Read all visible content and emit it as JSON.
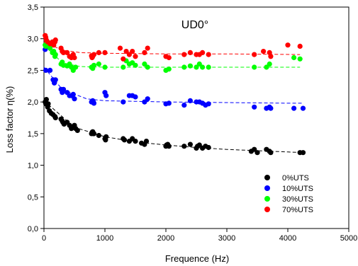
{
  "chart_data": {
    "type": "scatter",
    "title": "UD0°",
    "xlabel": "Frequence (Hz)",
    "ylabel": "Loss factor η(%)",
    "xlim": [
      0,
      5000
    ],
    "ylim": [
      0,
      3.5
    ],
    "xticks": [
      0,
      1000,
      2000,
      3000,
      4000,
      5000
    ],
    "yticks": [
      0.0,
      0.5,
      1.0,
      1.5,
      2.0,
      2.5,
      3.0,
      3.5
    ],
    "xtick_labels": [
      "0",
      "1000",
      "2000",
      "3000",
      "4000",
      "5000"
    ],
    "ytick_labels": [
      "0,0",
      "0,5",
      "1,0",
      "1,5",
      "2,0",
      "2,5",
      "3,0",
      "3,5"
    ],
    "grid": false,
    "legend_position": "bottom-right",
    "series": [
      {
        "name": "0%UTS",
        "color": "#000000",
        "x": [
          20,
          30,
          40,
          60,
          70,
          90,
          120,
          150,
          180,
          190,
          280,
          300,
          310,
          330,
          380,
          420,
          450,
          500,
          520,
          550,
          780,
          790,
          800,
          810,
          820,
          900,
          1000,
          1010,
          1020,
          1300,
          1320,
          1400,
          1450,
          1500,
          1600,
          1650,
          1680,
          2000,
          2010,
          2030,
          2050,
          2300,
          2400,
          2500,
          2520,
          2550,
          2600,
          2650,
          2700,
          3400,
          3450,
          3500,
          3650,
          3700,
          3720,
          4200,
          4250
        ],
        "y": [
          2.0,
          1.97,
          2.04,
          1.92,
          1.97,
          1.86,
          1.82,
          1.8,
          1.77,
          1.75,
          1.73,
          1.7,
          1.68,
          1.65,
          1.68,
          1.63,
          1.58,
          1.63,
          1.58,
          1.55,
          1.5,
          1.52,
          1.53,
          1.5,
          1.5,
          1.47,
          1.42,
          1.4,
          1.45,
          1.42,
          1.4,
          1.38,
          1.42,
          1.38,
          1.35,
          1.33,
          1.38,
          1.3,
          1.32,
          1.33,
          1.3,
          1.3,
          1.33,
          1.27,
          1.3,
          1.32,
          1.27,
          1.3,
          1.28,
          1.22,
          1.25,
          1.2,
          1.25,
          1.22,
          1.2,
          1.2,
          1.2
        ],
        "trend": [
          [
            0,
            2.02
          ],
          [
            500,
            1.6
          ],
          [
            1000,
            1.45
          ],
          [
            1500,
            1.37
          ],
          [
            2000,
            1.32
          ],
          [
            2500,
            1.28
          ],
          [
            3000,
            1.25
          ],
          [
            3500,
            1.23
          ],
          [
            4000,
            1.21
          ],
          [
            4250,
            1.2
          ]
        ]
      },
      {
        "name": "10%UTS",
        "color": "#0000ff",
        "x": [
          20,
          30,
          100,
          150,
          170,
          190,
          280,
          300,
          320,
          380,
          420,
          450,
          480,
          500,
          780,
          800,
          810,
          820,
          1000,
          1020,
          1300,
          1400,
          1450,
          1500,
          1650,
          1700,
          2000,
          2050,
          2300,
          2400,
          2500,
          2550,
          2600,
          2650,
          2700,
          3450,
          3650,
          3700,
          3720,
          4100,
          4250
        ],
        "y": [
          2.83,
          2.5,
          2.5,
          2.35,
          2.3,
          2.35,
          2.2,
          2.15,
          2.2,
          2.15,
          2.1,
          2.1,
          2.12,
          2.05,
          2.0,
          2.02,
          2.0,
          1.98,
          2.15,
          2.1,
          2.0,
          2.1,
          2.1,
          2.08,
          2.0,
          2.05,
          1.97,
          1.98,
          1.95,
          2.02,
          2.0,
          2.0,
          1.98,
          1.95,
          1.97,
          1.92,
          1.9,
          1.92,
          1.9,
          1.9,
          1.9
        ],
        "trend": [
          [
            0,
            2.55
          ],
          [
            300,
            2.2
          ],
          [
            700,
            2.05
          ],
          [
            1000,
            2.02
          ],
          [
            2000,
            2.0
          ],
          [
            3000,
            1.99
          ],
          [
            4000,
            1.98
          ],
          [
            4250,
            1.98
          ]
        ]
      },
      {
        "name": "30%UTS",
        "color": "#00ff00",
        "x": [
          20,
          30,
          60,
          100,
          140,
          160,
          180,
          190,
          280,
          300,
          320,
          380,
          420,
          450,
          480,
          520,
          780,
          800,
          820,
          900,
          1000,
          1300,
          1350,
          1400,
          1450,
          1500,
          1650,
          1700,
          2000,
          2050,
          2300,
          2400,
          2500,
          2550,
          2600,
          2700,
          3450,
          3650,
          3700,
          4100,
          4200
        ],
        "y": [
          2.9,
          2.88,
          2.9,
          2.85,
          2.78,
          2.8,
          2.72,
          2.75,
          2.6,
          2.63,
          2.58,
          2.57,
          2.6,
          2.55,
          2.5,
          2.55,
          2.55,
          2.53,
          2.58,
          2.6,
          2.55,
          2.55,
          2.65,
          2.6,
          2.62,
          2.58,
          2.6,
          2.55,
          2.5,
          2.52,
          2.55,
          2.57,
          2.55,
          2.6,
          2.55,
          2.55,
          2.55,
          2.55,
          2.6,
          2.7,
          2.68
        ],
        "trend": [
          [
            0,
            2.9
          ],
          [
            300,
            2.62
          ],
          [
            600,
            2.56
          ],
          [
            1000,
            2.55
          ],
          [
            2000,
            2.55
          ],
          [
            3000,
            2.55
          ],
          [
            4200,
            2.55
          ]
        ]
      },
      {
        "name": "70%UTS",
        "color": "#ff0000",
        "x": [
          20,
          30,
          40,
          60,
          100,
          140,
          160,
          180,
          190,
          280,
          300,
          320,
          380,
          420,
          450,
          480,
          500,
          780,
          790,
          800,
          820,
          900,
          1000,
          1250,
          1300,
          1350,
          1400,
          1450,
          1500,
          1650,
          1700,
          2000,
          2050,
          2300,
          2400,
          2500,
          2550,
          2600,
          2700,
          3450,
          3600,
          3700,
          3720,
          4000,
          4200
        ],
        "y": [
          3.05,
          3.02,
          2.98,
          2.95,
          2.92,
          2.95,
          2.9,
          2.95,
          2.98,
          2.85,
          2.8,
          2.78,
          2.78,
          2.72,
          2.7,
          2.75,
          2.7,
          2.73,
          2.7,
          2.72,
          2.75,
          2.78,
          2.78,
          2.85,
          2.68,
          2.8,
          2.75,
          2.8,
          2.72,
          2.78,
          2.85,
          2.72,
          2.7,
          2.75,
          2.78,
          2.75,
          2.75,
          2.78,
          2.75,
          2.75,
          2.8,
          2.78,
          2.72,
          2.9,
          2.88
        ],
        "trend": [
          [
            0,
            2.95
          ],
          [
            300,
            2.82
          ],
          [
            600,
            2.78
          ],
          [
            1000,
            2.77
          ],
          [
            2000,
            2.76
          ],
          [
            3000,
            2.76
          ],
          [
            4200,
            2.75
          ]
        ]
      }
    ]
  }
}
